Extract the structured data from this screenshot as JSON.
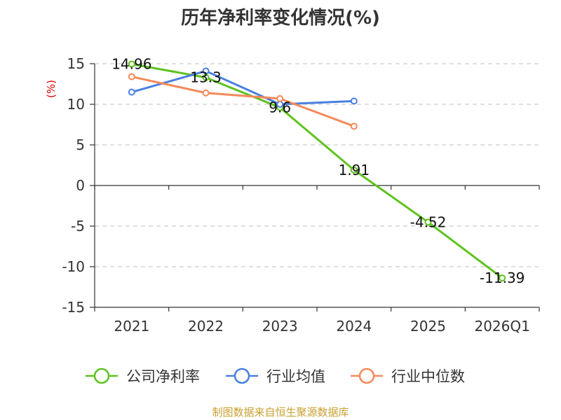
{
  "chart_data": {
    "type": "line",
    "title": "历年净利率变化情况(%)",
    "ylabel": "(%)",
    "xlabel": "",
    "categories": [
      "2021",
      "2022",
      "2023",
      "2024",
      "2025",
      "2026Q1"
    ],
    "ylim": [
      -15,
      15
    ],
    "yticks": [
      15,
      10,
      5,
      0,
      -5,
      -10,
      -15
    ],
    "grid": true,
    "legend_position": "bottom",
    "series": [
      {
        "name": "公司净利率",
        "color": "#5ec21e",
        "values": [
          14.96,
          13.3,
          9.6,
          1.91,
          -4.52,
          -11.39
        ],
        "labels": [
          "14.96",
          "13.3",
          "9.6",
          "1.91",
          "-4.52",
          "-11.39"
        ]
      },
      {
        "name": "行业均值",
        "color": "#4a7fe0",
        "values": [
          11.5,
          14.1,
          10.0,
          10.4,
          null,
          null
        ],
        "labels": []
      },
      {
        "name": "行业中位数",
        "color": "#f5895a",
        "values": [
          13.4,
          11.4,
          10.7,
          7.3,
          null,
          null
        ],
        "labels": []
      }
    ]
  },
  "source_text": "制图数据来自恒生聚源数据库"
}
